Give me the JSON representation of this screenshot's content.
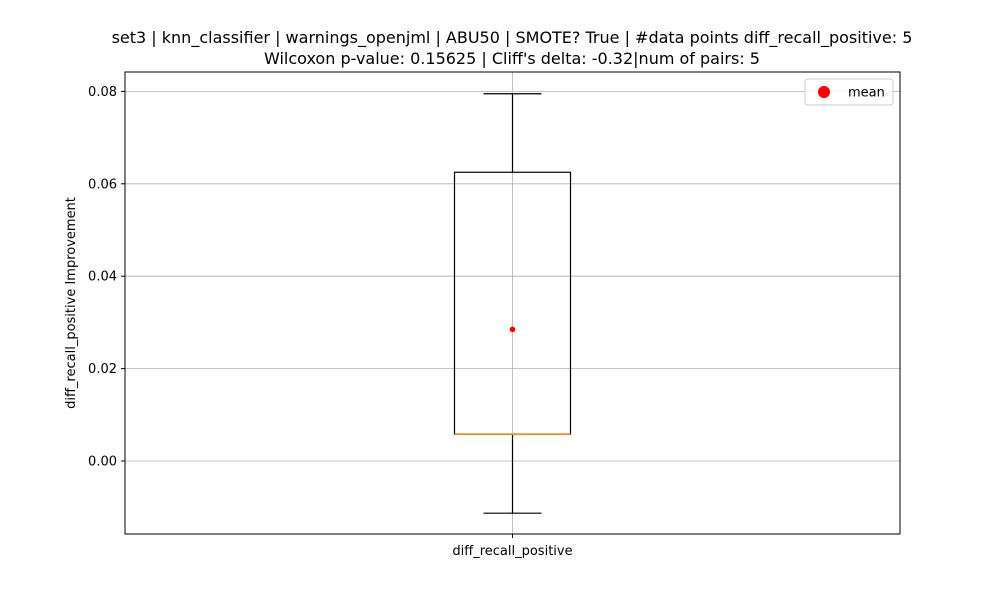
{
  "chart_data": {
    "type": "box",
    "title": "set3 | knn_classifier | warnings_openjml | ABU50 | SMOTE? True | #data points diff_recall_positive: 5",
    "subtitle": "Wilcoxon p-value: 0.15625 | Cliff's delta: -0.32|num of pairs: 5",
    "xlabel": "",
    "ylabel": "diff_recall_positive Improvement",
    "categories": [
      "diff_recall_positive"
    ],
    "ylim": [
      -0.0158,
      0.0842
    ],
    "yticks": [
      0.0,
      0.02,
      0.04,
      0.06,
      0.08
    ],
    "ytick_labels": [
      "0.00",
      "0.02",
      "0.04",
      "0.06",
      "0.08"
    ],
    "grid": true,
    "legend": {
      "placement": "top-right",
      "entries": [
        {
          "label": "mean",
          "color": "#ff0000",
          "marker": "circle"
        }
      ]
    },
    "boxes": [
      {
        "category": "diff_recall_positive",
        "whisker_low": -0.0113,
        "q1": 0.0058,
        "median": 0.0058,
        "q3": 0.0625,
        "whisker_high": 0.0795,
        "mean": 0.0285
      }
    ],
    "colors": {
      "box": "#000000",
      "median": "#ff7f0e",
      "mean": "#ff0000",
      "grid": "#b0b0b0"
    }
  }
}
